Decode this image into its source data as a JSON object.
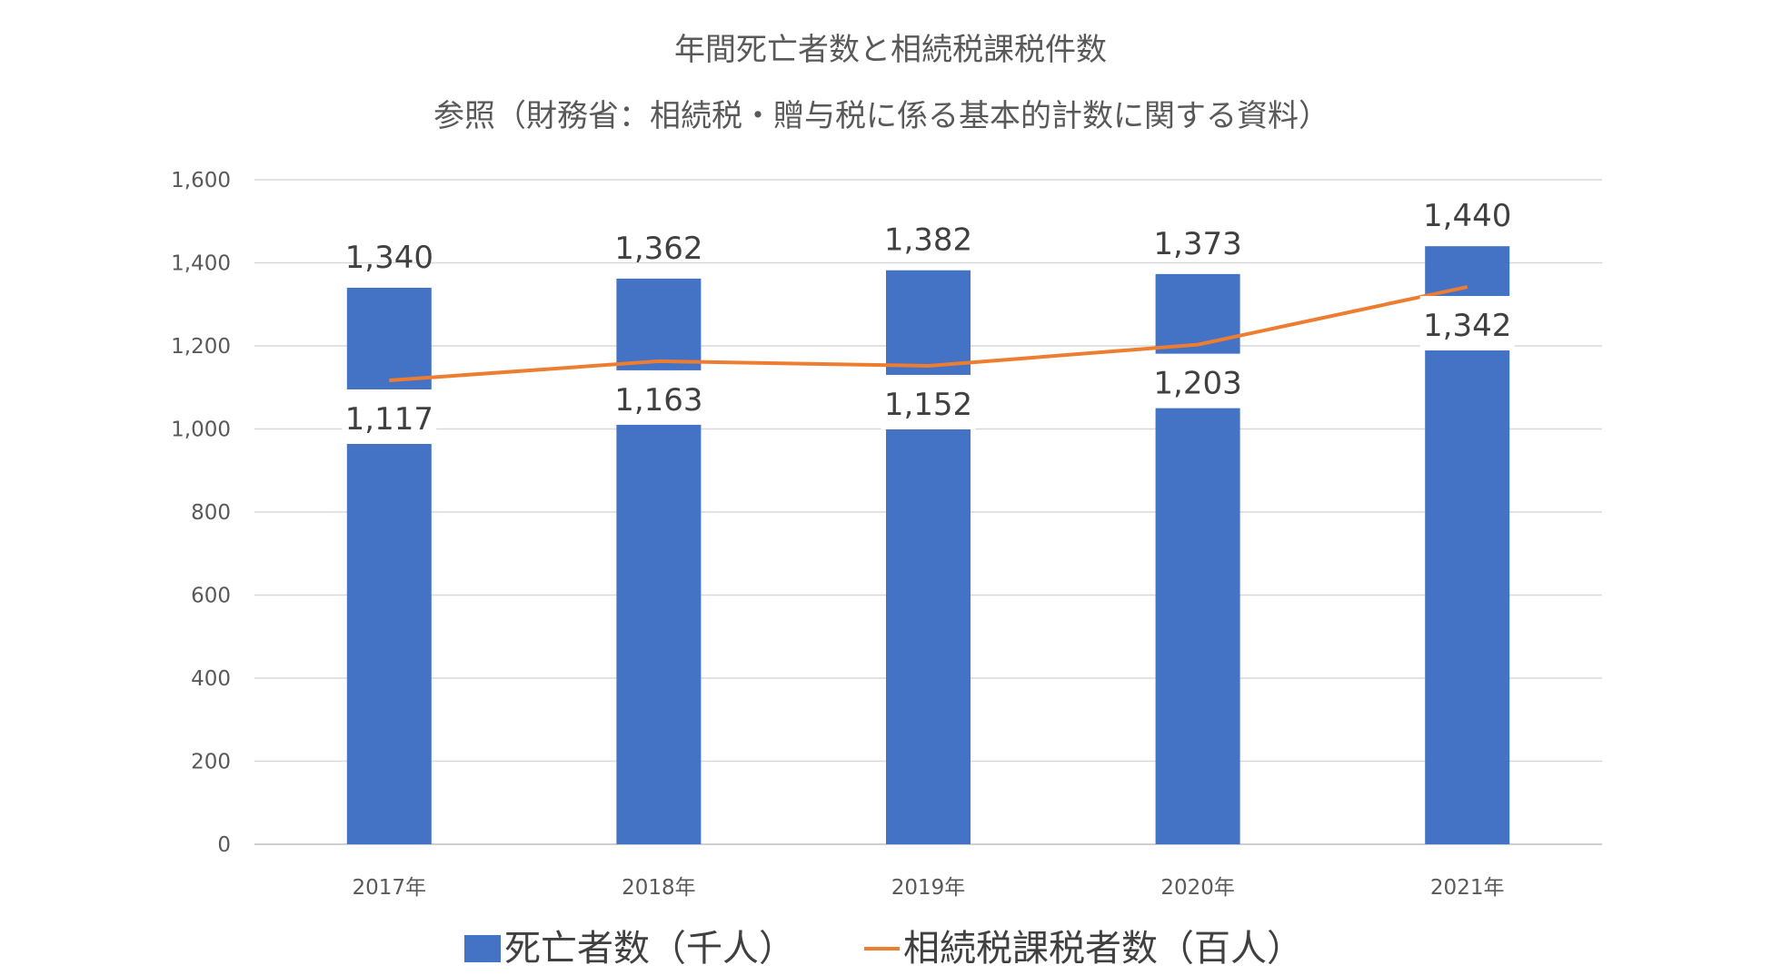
{
  "chart_data": {
    "type": "bar",
    "title": "年間死亡者数と相続税課税件数",
    "subtitle": "参照（財務省：相続税・贈与税に係る基本的計数に関する資料）",
    "categories": [
      "2017年",
      "2018年",
      "2019年",
      "2020年",
      "2021年"
    ],
    "ylim": [
      0,
      1600
    ],
    "yticks": [
      "0",
      "200",
      "400",
      "600",
      "800",
      "1,000",
      "1,200",
      "1,400",
      "1,600"
    ],
    "grid": true,
    "legend_position": "bottom",
    "series": [
      {
        "name": "死亡者数（千人）",
        "type": "bar",
        "color": "#4472C4",
        "values": [
          1340,
          1362,
          1382,
          1373,
          1440
        ],
        "labels": [
          "1,340",
          "1,362",
          "1,382",
          "1,373",
          "1,440"
        ]
      },
      {
        "name": "相続税課税者数（百人）",
        "type": "line",
        "color": "#ED7D31",
        "values": [
          1117,
          1163,
          1152,
          1203,
          1342
        ],
        "labels": [
          "1,117",
          "1,163",
          "1,152",
          "1,203",
          "1,342"
        ]
      }
    ]
  }
}
